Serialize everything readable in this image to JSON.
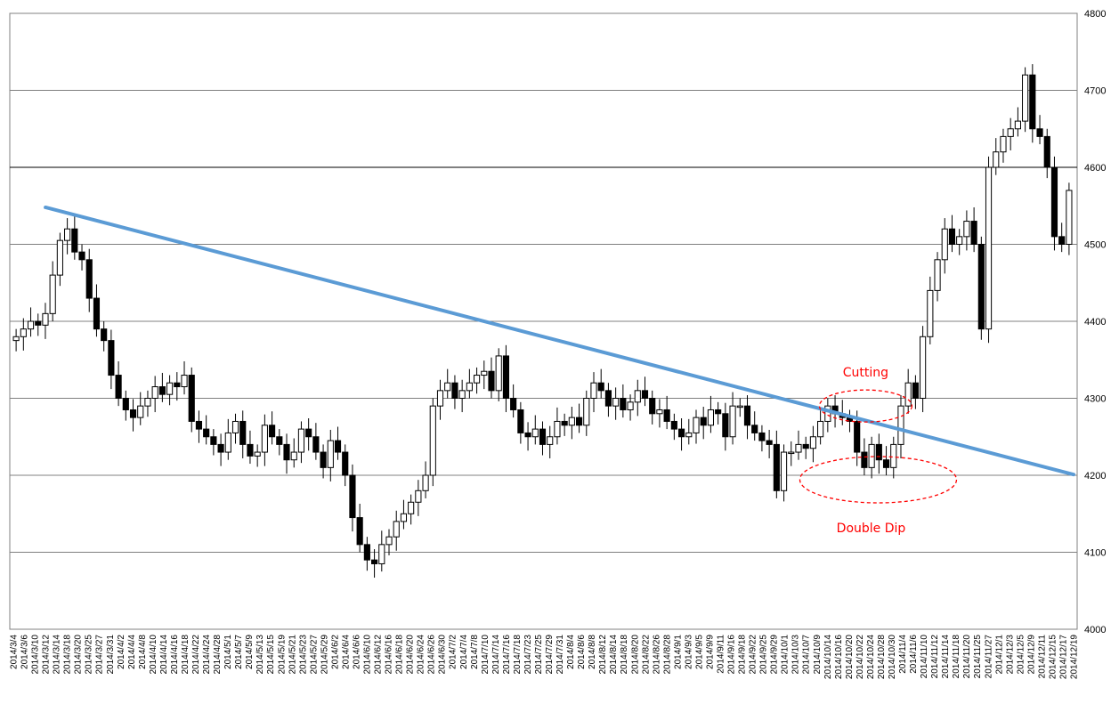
{
  "chart_data": {
    "type": "candlestick",
    "title": "",
    "xlabel": "",
    "ylabel": "",
    "ylim": [
      4000,
      4800
    ],
    "y_ticks": [
      4000,
      4100,
      4200,
      4300,
      4400,
      4500,
      4600,
      4700,
      4800
    ],
    "grid": "horizontal",
    "y_axis_side": "right",
    "x_tick_labels": [
      "2014/3/4",
      "2014/3/6",
      "2014/3/10",
      "2014/3/12",
      "2014/3/14",
      "2014/3/18",
      "2014/3/20",
      "2014/3/25",
      "2014/3/27",
      "2014/3/31",
      "2014/4/2",
      "2014/4/4",
      "2014/4/8",
      "2014/4/10",
      "2014/4/14",
      "2014/4/16",
      "2014/4/18",
      "2014/4/22",
      "2014/4/24",
      "2014/4/28",
      "2014/5/1",
      "2014/5/7",
      "2014/5/9",
      "2014/5/13",
      "2014/5/15",
      "2014/5/19",
      "2014/5/21",
      "2014/5/23",
      "2014/5/27",
      "2014/5/29",
      "2014/6/2",
      "2014/6/4",
      "2014/6/6",
      "2014/6/10",
      "2014/6/12",
      "2014/6/16",
      "2014/6/18",
      "2014/6/20",
      "2014/6/24",
      "2014/6/26",
      "2014/6/30",
      "2014/7/2",
      "2014/7/4",
      "2014/7/8",
      "2014/7/10",
      "2014/7/14",
      "2014/7/16",
      "2014/7/18",
      "2014/7/23",
      "2014/7/25",
      "2014/7/29",
      "2014/7/31",
      "2014/8/4",
      "2014/8/6",
      "2014/8/8",
      "2014/8/12",
      "2014/8/14",
      "2014/8/18",
      "2014/8/20",
      "2014/8/22",
      "2014/8/26",
      "2014/8/28",
      "2014/9/1",
      "2014/9/3",
      "2014/9/5",
      "2014/9/9",
      "2014/9/11",
      "2014/9/16",
      "2014/9/18",
      "2014/9/22",
      "2014/9/25",
      "2014/9/29",
      "2014/10/1",
      "2014/10/3",
      "2014/10/7",
      "2014/10/9",
      "2014/10/14",
      "2014/10/16",
      "2014/10/20",
      "2014/10/22",
      "2014/10/24",
      "2014/10/28",
      "2014/10/30",
      "2014/11/4",
      "2014/11/6",
      "2014/11/10",
      "2014/11/12",
      "2014/11/14",
      "2014/11/18",
      "2014/11/20",
      "2014/11/25",
      "2014/11/27",
      "2014/12/1",
      "2014/12/3",
      "2014/12/5",
      "2014/12/9",
      "2014/12/11",
      "2014/12/15",
      "2014/12/17",
      "2014/12/19"
    ],
    "closes_approx": [
      4380,
      4390,
      4400,
      4395,
      4410,
      4460,
      4505,
      4520,
      4490,
      4480,
      4430,
      4390,
      4375,
      4330,
      4300,
      4285,
      4275,
      4290,
      4300,
      4315,
      4305,
      4320,
      4315,
      4330,
      4270,
      4260,
      4250,
      4240,
      4230,
      4255,
      4270,
      4240,
      4225,
      4230,
      4265,
      4250,
      4240,
      4220,
      4230,
      4260,
      4250,
      4230,
      4210,
      4245,
      4230,
      4200,
      4145,
      4110,
      4090,
      4085,
      4110,
      4120,
      4140,
      4150,
      4165,
      4180,
      4200,
      4290,
      4310,
      4320,
      4300,
      4310,
      4320,
      4330,
      4335,
      4310,
      4355,
      4300,
      4285,
      4255,
      4250,
      4260,
      4240,
      4250,
      4270,
      4265,
      4275,
      4265,
      4300,
      4320,
      4310,
      4290,
      4300,
      4285,
      4295,
      4310,
      4300,
      4280,
      4285,
      4270,
      4260,
      4250,
      4255,
      4275,
      4265,
      4285,
      4280,
      4250,
      4290,
      4290,
      4265,
      4255,
      4245,
      4240,
      4180,
      4230,
      4230,
      4240,
      4235,
      4250,
      4270,
      4290,
      4280,
      4275,
      4270,
      4230,
      4210,
      4240,
      4220,
      4210,
      4240,
      4290,
      4320,
      4300,
      4380,
      4440,
      4480,
      4520,
      4500,
      4510,
      4530,
      4500,
      4390,
      4600,
      4620,
      4640,
      4650,
      4660,
      4720,
      4650,
      4640,
      4600,
      4510,
      4500,
      4570
    ],
    "trendline": {
      "from": [
        "2014/3/12",
        4548
      ],
      "to": [
        "2014/12/19",
        4201
      ]
    },
    "annotations": [
      {
        "text": "Cutting",
        "near": [
          "2014/10/24",
          4290
        ]
      },
      {
        "text": "Double Dip",
        "near": [
          "2014/10/30",
          4200
        ]
      }
    ],
    "colors": {
      "bear": "#000000",
      "bull": "#ffffff",
      "trendline": "#5b9bd5",
      "annotation": "#ff0000",
      "grid": "#808080"
    }
  }
}
